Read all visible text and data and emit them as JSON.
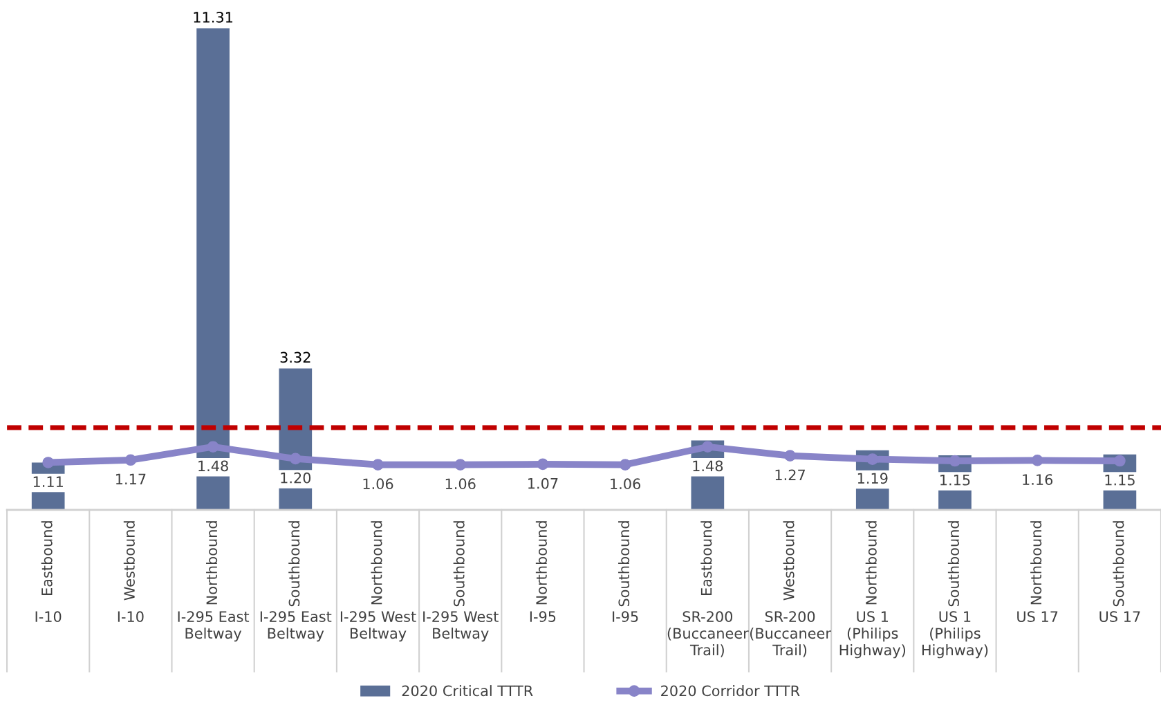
{
  "chart_data": {
    "type": "bar",
    "categories": [
      "Eastbound\nI-10",
      "Westbound\nI-10",
      "Northbound\nI-295 East\nBeltway",
      "Southbound\nI-295 East\nBeltway",
      "Northbound\nI-295 West\nBeltway",
      "Southbound\nI-295 West\nBeltway",
      "Northbound\nI-95",
      "Southbound\nI-95",
      "Eastbound\nSR-200\n(Buccaneer\nTrail)",
      "Westbound\nSR-200\n(Buccaneer\nTrail)",
      "Northbound\nUS 1\n(Philips\nHighway)",
      "Southbound\nUS 1\n(Philips\nHighway)",
      "Northbound\nUS 17",
      "Southbound\nUS 17"
    ],
    "series": [
      {
        "name": "2020 Critical TTTR",
        "color": "#5a6f96",
        "values": [
          1.11,
          null,
          11.31,
          3.32,
          null,
          null,
          null,
          null,
          1.63,
          null,
          1.4,
          1.28,
          null,
          1.3
        ],
        "value_labels": [
          null,
          null,
          "11.31",
          "3.32",
          null,
          null,
          null,
          null,
          null,
          null,
          null,
          null,
          null,
          null
        ]
      },
      {
        "name": "2020 Corridor TTTR",
        "type": "line",
        "color": "#8884c8",
        "marker": "circle",
        "values": [
          1.11,
          1.17,
          1.48,
          1.2,
          1.06,
          1.06,
          1.07,
          1.06,
          1.48,
          1.27,
          1.19,
          1.15,
          1.16,
          1.15
        ],
        "value_labels": [
          "1.11",
          "1.17",
          "1.48",
          "1.20",
          "1.06",
          "1.06",
          "1.07",
          "1.06",
          "1.48",
          "1.27",
          "1.19",
          "1.15",
          "1.16",
          "1.15"
        ]
      }
    ],
    "ref_lines": [
      {
        "axis": "y",
        "value": 1.93,
        "color": "#c00000",
        "line_style": "dashed"
      }
    ],
    "legend": "bottom",
    "tick_labels": "x"
  }
}
